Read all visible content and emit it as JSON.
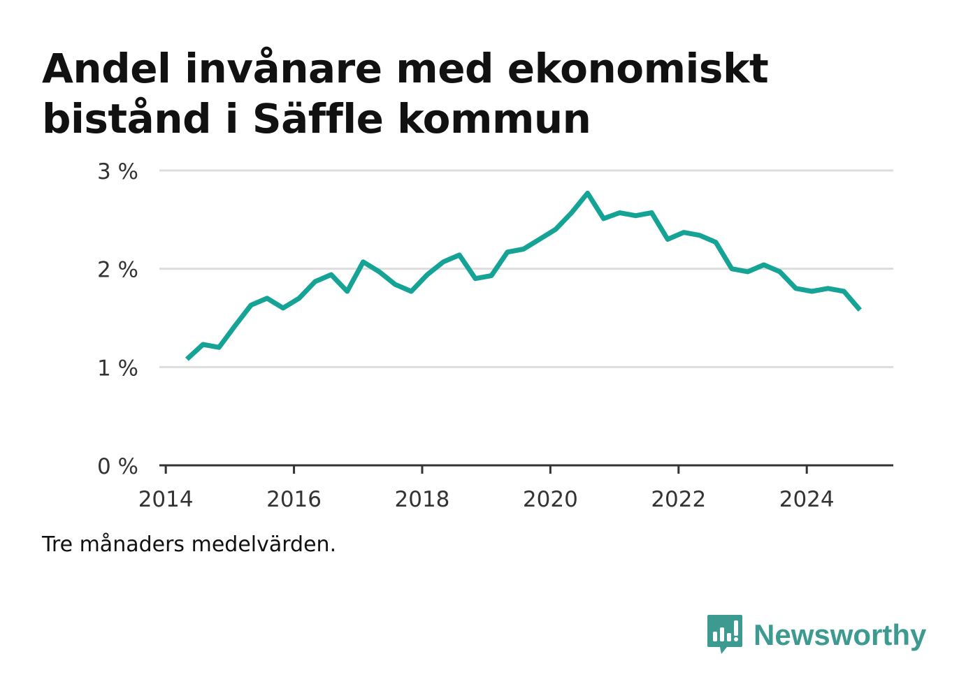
{
  "title": "Andel invånare med ekonomiskt bistånd i Säffle kommun",
  "note": "Tre månaders medelvärden.",
  "brand": {
    "name": "Newsworthy",
    "icon": "newsworthy-logo-icon",
    "color": "#3d9a91"
  },
  "colors": {
    "line": "#14a395",
    "grid": "#dddddd",
    "axis": "#333333",
    "text": "#333333"
  },
  "chart_data": {
    "type": "line",
    "title": "Andel invånare med ekonomiskt bistånd i Säffle kommun",
    "xlabel": "",
    "ylabel": "",
    "x_ticks": [
      "2014",
      "2016",
      "2018",
      "2020",
      "2022",
      "2024"
    ],
    "y_ticks": [
      "0 %",
      "1 %",
      "2 %",
      "3 %"
    ],
    "xlim": [
      2013.9,
      2025.35
    ],
    "ylim": [
      0,
      3
    ],
    "grid": true,
    "series": [
      {
        "x": [
          2014.33,
          2014.58,
          2014.83,
          2015.08,
          2015.33,
          2015.58,
          2015.83,
          2016.08,
          2016.33,
          2016.58,
          2016.83,
          2017.08,
          2017.33,
          2017.58,
          2017.83,
          2018.08,
          2018.33,
          2018.58,
          2018.83,
          2019.08,
          2019.33,
          2019.58,
          2019.83,
          2020.08,
          2020.33,
          2020.58,
          2020.83,
          2021.08,
          2021.33,
          2021.58,
          2021.83,
          2022.08,
          2022.33,
          2022.58,
          2022.83,
          2023.08,
          2023.33,
          2023.58,
          2023.83,
          2024.08,
          2024.33,
          2024.58,
          2024.83
        ],
        "values": [
          1.08,
          1.23,
          1.2,
          1.42,
          1.63,
          1.7,
          1.6,
          1.7,
          1.87,
          1.94,
          1.77,
          2.07,
          1.97,
          1.84,
          1.77,
          1.94,
          2.07,
          2.14,
          1.9,
          1.93,
          2.17,
          2.2,
          2.3,
          2.4,
          2.57,
          2.77,
          2.51,
          2.57,
          2.54,
          2.57,
          2.3,
          2.37,
          2.34,
          2.27,
          2.0,
          1.97,
          2.04,
          1.97,
          1.8,
          1.77,
          1.8,
          1.77,
          1.58
        ]
      }
    ]
  }
}
